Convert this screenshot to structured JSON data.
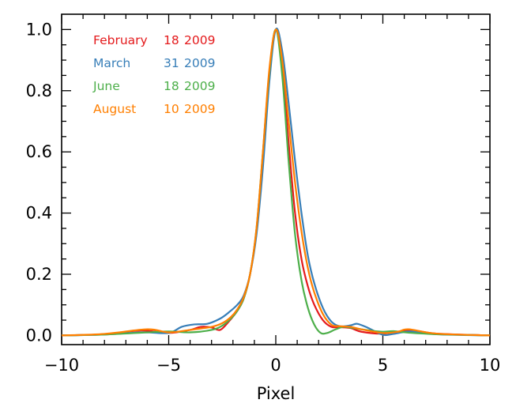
{
  "chart_data": {
    "type": "line",
    "title": "",
    "xlabel": "Pixel",
    "ylabel": "",
    "xlim": [
      -10,
      10
    ],
    "ylim": [
      -0.03,
      1.05
    ],
    "x_ticks": [
      -10,
      -5,
      0,
      5,
      10
    ],
    "x_tick_labels": [
      "−10",
      "−5",
      "0",
      "5",
      "10"
    ],
    "y_ticks": [
      0.0,
      0.2,
      0.4,
      0.6,
      0.8,
      1.0
    ],
    "y_tick_labels": [
      "0.0",
      "0.2",
      "0.4",
      "0.6",
      "0.8",
      "1.0"
    ],
    "grid": false,
    "legend_position": "top-left",
    "series": [
      {
        "name": "February",
        "legend": [
          "February",
          "18",
          "2009"
        ],
        "color": "#e41a1c",
        "points": [
          [
            -10,
            0.0
          ],
          [
            -8,
            0.004
          ],
          [
            -6.3,
            0.016
          ],
          [
            -5,
            0.008
          ],
          [
            -4,
            0.018
          ],
          [
            -3.5,
            0.028
          ],
          [
            -3,
            0.026
          ],
          [
            -2.6,
            0.018
          ],
          [
            -2.2,
            0.045
          ],
          [
            -1.8,
            0.08
          ],
          [
            -1.5,
            0.12
          ],
          [
            -1.2,
            0.2
          ],
          [
            -0.9,
            0.34
          ],
          [
            -0.6,
            0.58
          ],
          [
            -0.3,
            0.85
          ],
          [
            0,
            1.0
          ],
          [
            0.3,
            0.88
          ],
          [
            0.6,
            0.63
          ],
          [
            0.9,
            0.4
          ],
          [
            1.2,
            0.25
          ],
          [
            1.5,
            0.16
          ],
          [
            1.8,
            0.1
          ],
          [
            2.2,
            0.05
          ],
          [
            2.6,
            0.028
          ],
          [
            3,
            0.027
          ],
          [
            3.5,
            0.024
          ],
          [
            4,
            0.012
          ],
          [
            5,
            0.006
          ],
          [
            6.3,
            0.017
          ],
          [
            7.5,
            0.006
          ],
          [
            10,
            0.0
          ]
        ]
      },
      {
        "name": "March",
        "legend": [
          "March",
          "31",
          "2009"
        ],
        "color": "#377eb8",
        "points": [
          [
            -10,
            0.0
          ],
          [
            -8,
            0.003
          ],
          [
            -6.2,
            0.01
          ],
          [
            -5,
            0.008
          ],
          [
            -4.4,
            0.028
          ],
          [
            -3.8,
            0.036
          ],
          [
            -3.2,
            0.038
          ],
          [
            -2.6,
            0.055
          ],
          [
            -2.2,
            0.075
          ],
          [
            -1.8,
            0.1
          ],
          [
            -1.5,
            0.13
          ],
          [
            -1.2,
            0.2
          ],
          [
            -0.9,
            0.33
          ],
          [
            -0.6,
            0.55
          ],
          [
            -0.3,
            0.83
          ],
          [
            0,
            1.0
          ],
          [
            0.3,
            0.93
          ],
          [
            0.6,
            0.76
          ],
          [
            0.9,
            0.57
          ],
          [
            1.2,
            0.4
          ],
          [
            1.5,
            0.26
          ],
          [
            1.8,
            0.17
          ],
          [
            2.2,
            0.09
          ],
          [
            2.6,
            0.045
          ],
          [
            3,
            0.03
          ],
          [
            3.5,
            0.033
          ],
          [
            3.8,
            0.038
          ],
          [
            4.3,
            0.025
          ],
          [
            5,
            0.002
          ],
          [
            5.5,
            0.005
          ],
          [
            6.3,
            0.013
          ],
          [
            7.5,
            0.004
          ],
          [
            10,
            0.0
          ]
        ]
      },
      {
        "name": "June",
        "legend": [
          "June",
          "18",
          "2009"
        ],
        "color": "#4daf4a",
        "points": [
          [
            -10,
            0.0
          ],
          [
            -8,
            0.003
          ],
          [
            -6,
            0.01
          ],
          [
            -5,
            0.013
          ],
          [
            -4,
            0.01
          ],
          [
            -3,
            0.018
          ],
          [
            -2.5,
            0.032
          ],
          [
            -2.1,
            0.055
          ],
          [
            -1.8,
            0.08
          ],
          [
            -1.5,
            0.12
          ],
          [
            -1.2,
            0.2
          ],
          [
            -0.9,
            0.35
          ],
          [
            -0.6,
            0.6
          ],
          [
            -0.3,
            0.86
          ],
          [
            0,
            1.0
          ],
          [
            0.3,
            0.85
          ],
          [
            0.6,
            0.57
          ],
          [
            0.9,
            0.33
          ],
          [
            1.2,
            0.18
          ],
          [
            1.5,
            0.09
          ],
          [
            1.8,
            0.035
          ],
          [
            2.1,
            0.008
          ],
          [
            2.4,
            0.008
          ],
          [
            2.8,
            0.02
          ],
          [
            3.2,
            0.028
          ],
          [
            3.8,
            0.022
          ],
          [
            4.5,
            0.015
          ],
          [
            5,
            0.012
          ],
          [
            5.5,
            0.014
          ],
          [
            6.2,
            0.009
          ],
          [
            7.5,
            0.004
          ],
          [
            10,
            0.0
          ]
        ]
      },
      {
        "name": "August",
        "legend": [
          "August",
          "10",
          "2009"
        ],
        "color": "#ff7f00",
        "points": [
          [
            -10,
            0.0
          ],
          [
            -8,
            0.005
          ],
          [
            -6,
            0.02
          ],
          [
            -5,
            0.01
          ],
          [
            -4,
            0.018
          ],
          [
            -3,
            0.028
          ],
          [
            -2.5,
            0.04
          ],
          [
            -2.1,
            0.06
          ],
          [
            -1.8,
            0.085
          ],
          [
            -1.5,
            0.125
          ],
          [
            -1.2,
            0.2
          ],
          [
            -0.9,
            0.35
          ],
          [
            -0.6,
            0.6
          ],
          [
            -0.3,
            0.87
          ],
          [
            0,
            1.0
          ],
          [
            0.3,
            0.9
          ],
          [
            0.6,
            0.7
          ],
          [
            0.9,
            0.5
          ],
          [
            1.2,
            0.34
          ],
          [
            1.5,
            0.22
          ],
          [
            1.8,
            0.14
          ],
          [
            2.2,
            0.07
          ],
          [
            2.6,
            0.035
          ],
          [
            3,
            0.03
          ],
          [
            3.5,
            0.028
          ],
          [
            4,
            0.02
          ],
          [
            5,
            0.008
          ],
          [
            5.7,
            0.012
          ],
          [
            6.2,
            0.02
          ],
          [
            7.5,
            0.006
          ],
          [
            10,
            0.0
          ]
        ]
      }
    ]
  }
}
